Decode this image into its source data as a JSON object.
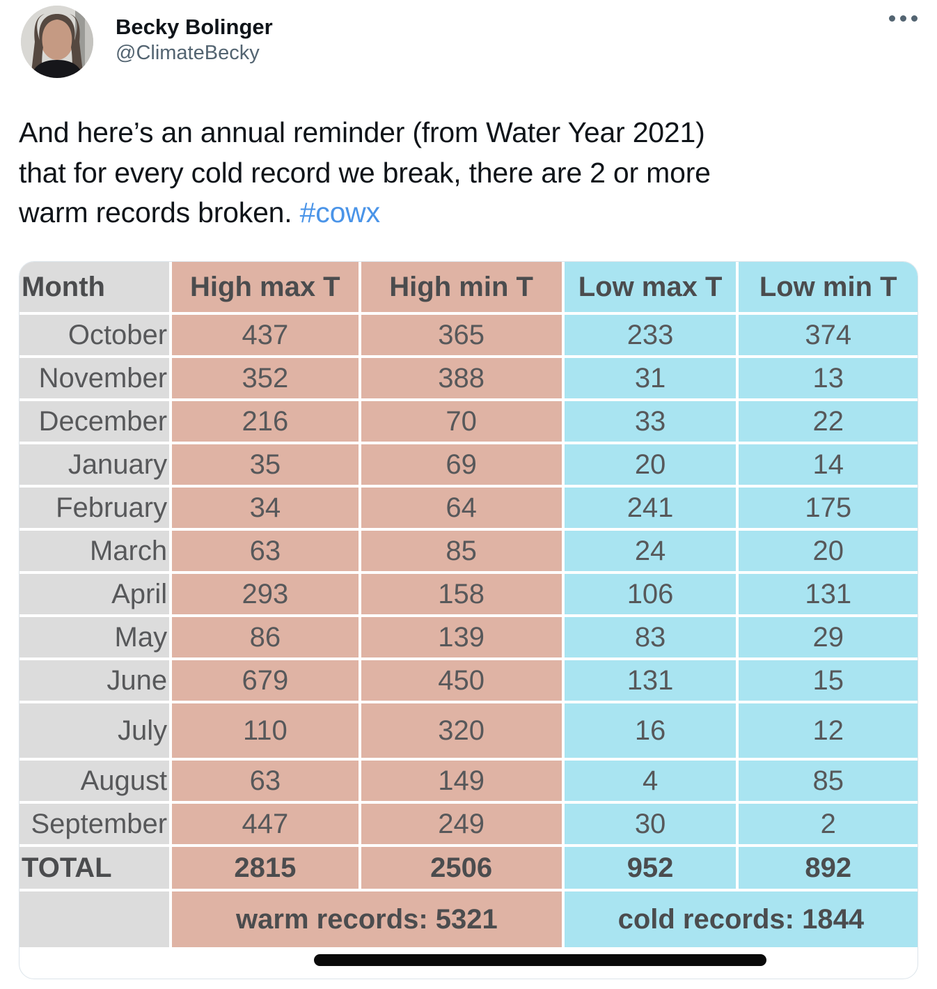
{
  "tweet": {
    "author": {
      "name": "Becky Bolinger",
      "handle": "@ClimateBecky"
    },
    "icons": {
      "more": "more-options-ellipsis"
    },
    "body": {
      "lines": [
        "And here’s an annual reminder (from Water Year 2021)",
        "that for every cold record we break, there are 2 or more",
        "warm records broken."
      ],
      "hashtag": "#cowx"
    },
    "link_color": "#4a94e8"
  },
  "table": {
    "headers": [
      "Month",
      "High max T",
      "High min T",
      "Low max T",
      "Low min T"
    ],
    "rows": [
      [
        "October",
        "437",
        "365",
        "233",
        "374"
      ],
      [
        "November",
        "352",
        "388",
        "31",
        "13"
      ],
      [
        "December",
        "216",
        "70",
        "33",
        "22"
      ],
      [
        "January",
        "35",
        "69",
        "20",
        "14"
      ],
      [
        "February",
        "34",
        "64",
        "241",
        "175"
      ],
      [
        "March",
        "63",
        "85",
        "24",
        "20"
      ],
      [
        "April",
        "293",
        "158",
        "106",
        "131"
      ],
      [
        "May",
        "86",
        "139",
        "83",
        "29"
      ],
      [
        "June",
        "679",
        "450",
        "131",
        "15"
      ],
      [
        "July",
        "110",
        "320",
        "16",
        "12"
      ],
      [
        "August",
        "63",
        "149",
        "4",
        "85"
      ],
      [
        "September",
        "447",
        "249",
        "30",
        "2"
      ]
    ],
    "total_row": [
      "TOTAL",
      "2815",
      "2506",
      "952",
      "892"
    ],
    "footer": {
      "warm": "warm records: 5321",
      "cold": "cold records: 1844"
    },
    "colors": {
      "warm": "#dfb3a4",
      "cold": "#a9e4f1",
      "month": "#dcdcdc"
    }
  }
}
